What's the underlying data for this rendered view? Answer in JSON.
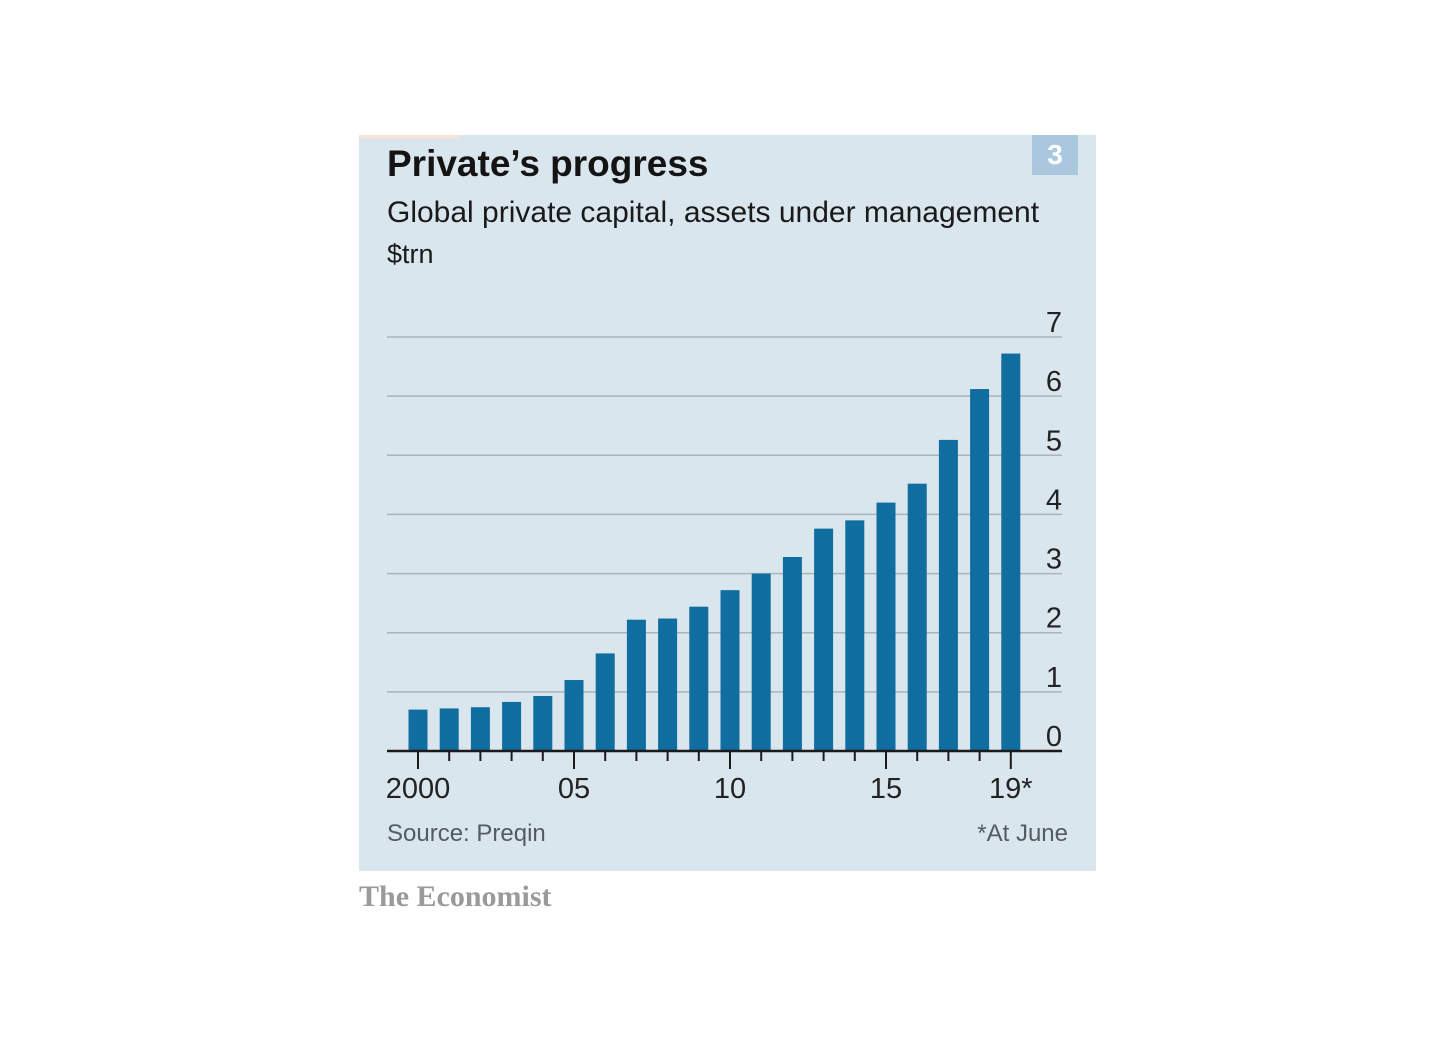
{
  "badge": "3",
  "title": "Private’s progress",
  "subtitle": "Global private capital, assets under management",
  "unit": "$trn",
  "source": "Source: Preqin",
  "footnote": "*At June",
  "brand": "The Economist",
  "colors": {
    "panel": "#dae6ee",
    "bar": "#0f6e9f",
    "grid": "#a9b4bb",
    "badge": "#a9c8dd"
  },
  "chart_data": {
    "type": "bar",
    "title": "Private’s progress",
    "subtitle": "Global private capital, assets under management",
    "ylabel": "$trn",
    "categories": [
      "2000",
      "2001",
      "2002",
      "2003",
      "2004",
      "2005",
      "2006",
      "2007",
      "2008",
      "2009",
      "2010",
      "2011",
      "2012",
      "2013",
      "2014",
      "2015",
      "2016",
      "2017",
      "2018",
      "2019*"
    ],
    "values": [
      0.7,
      0.72,
      0.74,
      0.83,
      0.93,
      1.2,
      1.65,
      2.22,
      2.24,
      2.44,
      2.72,
      3.0,
      3.28,
      3.76,
      3.9,
      4.2,
      4.52,
      5.26,
      6.12,
      6.72
    ],
    "ylim": [
      0,
      7
    ],
    "yticks": [
      "0",
      "1",
      "2",
      "3",
      "4",
      "5",
      "6",
      "7"
    ],
    "xtick_labels": [
      {
        "category": "2000",
        "label": "2000"
      },
      {
        "category": "2005",
        "label": "05"
      },
      {
        "category": "2010",
        "label": "10"
      },
      {
        "category": "2015",
        "label": "15"
      },
      {
        "category": "2019*",
        "label": "19*"
      }
    ],
    "grid": true,
    "yaxis_side": "right"
  }
}
